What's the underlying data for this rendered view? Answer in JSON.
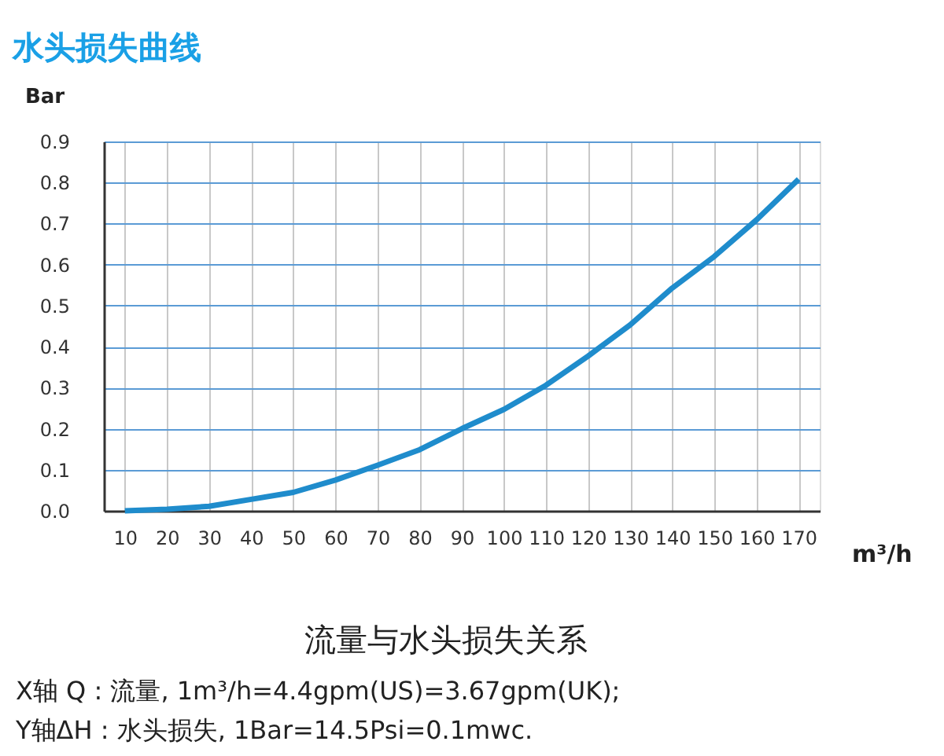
{
  "chart_data": {
    "type": "line",
    "title": "水头损失曲线",
    "xlabel": "m³/h",
    "ylabel": "Bar",
    "categories": [
      "10",
      "20",
      "30",
      "40",
      "50",
      "60",
      "70",
      "80",
      "90",
      "100",
      "110",
      "120",
      "130",
      "140",
      "150",
      "160",
      "170"
    ],
    "series": [
      {
        "color": "#1f8ccc",
        "values": [
          0.0,
          0.004,
          0.011,
          0.028,
          0.045,
          0.075,
          0.111,
          0.149,
          0.2,
          0.247,
          0.306,
          0.377,
          0.453,
          0.543,
          0.62,
          0.709,
          0.808
        ]
      }
    ],
    "ylim": [
      0,
      0.9
    ],
    "yticks": [
      {
        "value": 0,
        "label": "0.0"
      },
      {
        "value": 0.1,
        "label": "0.1"
      },
      {
        "value": 0.2,
        "label": "0.2"
      },
      {
        "value": 0.3,
        "label": "0.3"
      },
      {
        "value": 0.4,
        "label": "0.4"
      },
      {
        "value": 0.5,
        "label": "0.5"
      },
      {
        "value": 0.6,
        "label": "0.6"
      },
      {
        "value": 0.7,
        "label": "0.7"
      },
      {
        "value": 0.8,
        "label": "0.8"
      },
      {
        "value": 0.9,
        "label": "0.9"
      }
    ],
    "grid": true,
    "marker": "none",
    "line_style": "solid",
    "annotations": [
      "流量与水头损失关系",
      "X轴 Q : 流量, 1m³/h=4.4gpm(US)=3.67gpm(UK);",
      "Y轴ΔH : 水头损失, 1Bar=14.5Psi=0.1mwc."
    ]
  }
}
